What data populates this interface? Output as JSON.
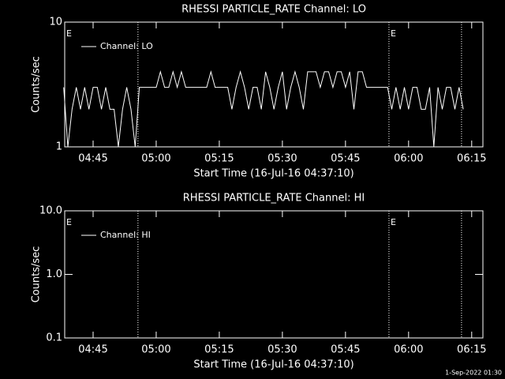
{
  "chart_data": [
    {
      "type": "line",
      "title": "RHESSI PARTICLE_RATE Channel: LO",
      "ylabel": "Counts/sec",
      "xlabel": "Start Time (16-Jul-16 04:37:10)",
      "yscale": "log",
      "ylim": [
        1,
        10
      ],
      "yticks": [
        1,
        10
      ],
      "xlim": [
        "04:38:15",
        "06:17:40"
      ],
      "xticks": [
        "04:45",
        "05:00",
        "05:15",
        "05:30",
        "05:45",
        "06:00",
        "06:15"
      ],
      "x": [
        "04:38",
        "04:39",
        "04:40",
        "04:41",
        "04:42",
        "04:43",
        "04:44",
        "04:45",
        "04:46",
        "04:47",
        "04:48",
        "04:49",
        "04:50",
        "04:51",
        "04:52",
        "04:53",
        "04:54",
        "04:55",
        "04:56",
        "04:57",
        "04:58",
        "04:59",
        "05:00",
        "05:01",
        "05:02",
        "05:03",
        "05:04",
        "05:05",
        "05:06",
        "05:07",
        "05:08",
        "05:09",
        "05:10",
        "05:11",
        "05:12",
        "05:13",
        "05:14",
        "05:15",
        "05:16",
        "05:17",
        "05:18",
        "05:19",
        "05:20",
        "05:21",
        "05:22",
        "05:23",
        "05:24",
        "05:25",
        "05:26",
        "05:27",
        "05:28",
        "05:29",
        "05:30",
        "05:31",
        "05:32",
        "05:33",
        "05:34",
        "05:35",
        "05:36",
        "05:37",
        "05:38",
        "05:39",
        "05:40",
        "05:41",
        "05:42",
        "05:43",
        "05:44",
        "05:45",
        "05:46",
        "05:47",
        "05:48",
        "05:49",
        "05:50",
        "05:51",
        "05:52",
        "05:53",
        "05:54",
        "05:55",
        "05:56",
        "05:57",
        "05:58",
        "05:59",
        "06:00",
        "06:01",
        "06:02",
        "06:03",
        "06:04",
        "06:05",
        "06:06",
        "06:07",
        "06:08",
        "06:09",
        "06:10",
        "06:11",
        "06:12",
        "06:13"
      ],
      "series": [
        {
          "name": "Channel: LO",
          "color": "#ffffff",
          "values": [
            3,
            1,
            2,
            3,
            2,
            3,
            2,
            3,
            3,
            2,
            3,
            2,
            2,
            1,
            2,
            3,
            2,
            1,
            3,
            3,
            3,
            3,
            3,
            4,
            3,
            3,
            4,
            3,
            4,
            3,
            3,
            3,
            3,
            3,
            3,
            4,
            3,
            3,
            3,
            3,
            2,
            3,
            4,
            3,
            2,
            3,
            3,
            2,
            4,
            3,
            2,
            3,
            4,
            2,
            3,
            4,
            3,
            2,
            4,
            4,
            4,
            3,
            4,
            4,
            3,
            4,
            4,
            3,
            4,
            2,
            4,
            4,
            3,
            3,
            3,
            3,
            3,
            3,
            2,
            3,
            2,
            3,
            2,
            3,
            3,
            2,
            2,
            3,
            1,
            3,
            2,
            3,
            3,
            2,
            3,
            2
          ]
        }
      ],
      "vlines": [
        "04:55:40",
        "05:55:20",
        "06:12:35"
      ],
      "annotations": [
        {
          "text": "E",
          "x": "04:38:15"
        },
        {
          "text": "E",
          "x": "05:55:20"
        }
      ]
    },
    {
      "type": "line",
      "title": "RHESSI PARTICLE_RATE Channel: HI",
      "ylabel": "Counts/sec",
      "xlabel": "Start Time (16-Jul-16 04:37:10)",
      "yscale": "log",
      "ylim": [
        0.1,
        10
      ],
      "yticks": [
        0.1,
        {
          "value": 1,
          "label": "1.0"
        },
        {
          "value": 10,
          "label": "10.0"
        }
      ],
      "xlim": [
        "04:38:15",
        "06:17:40"
      ],
      "xticks": [
        "04:45",
        "05:00",
        "05:15",
        "05:30",
        "05:45",
        "06:00",
        "06:15"
      ],
      "x": [],
      "series": [
        {
          "name": "Channel: HI",
          "color": "#ffffff",
          "values": []
        }
      ],
      "vlines": [
        "04:55:40",
        "05:55:20",
        "06:12:35"
      ],
      "annotations": [
        {
          "text": "E",
          "x": "04:38:15"
        },
        {
          "text": "E",
          "x": "05:55:20"
        }
      ]
    }
  ],
  "footer": "1-Sep-2022 01:30"
}
